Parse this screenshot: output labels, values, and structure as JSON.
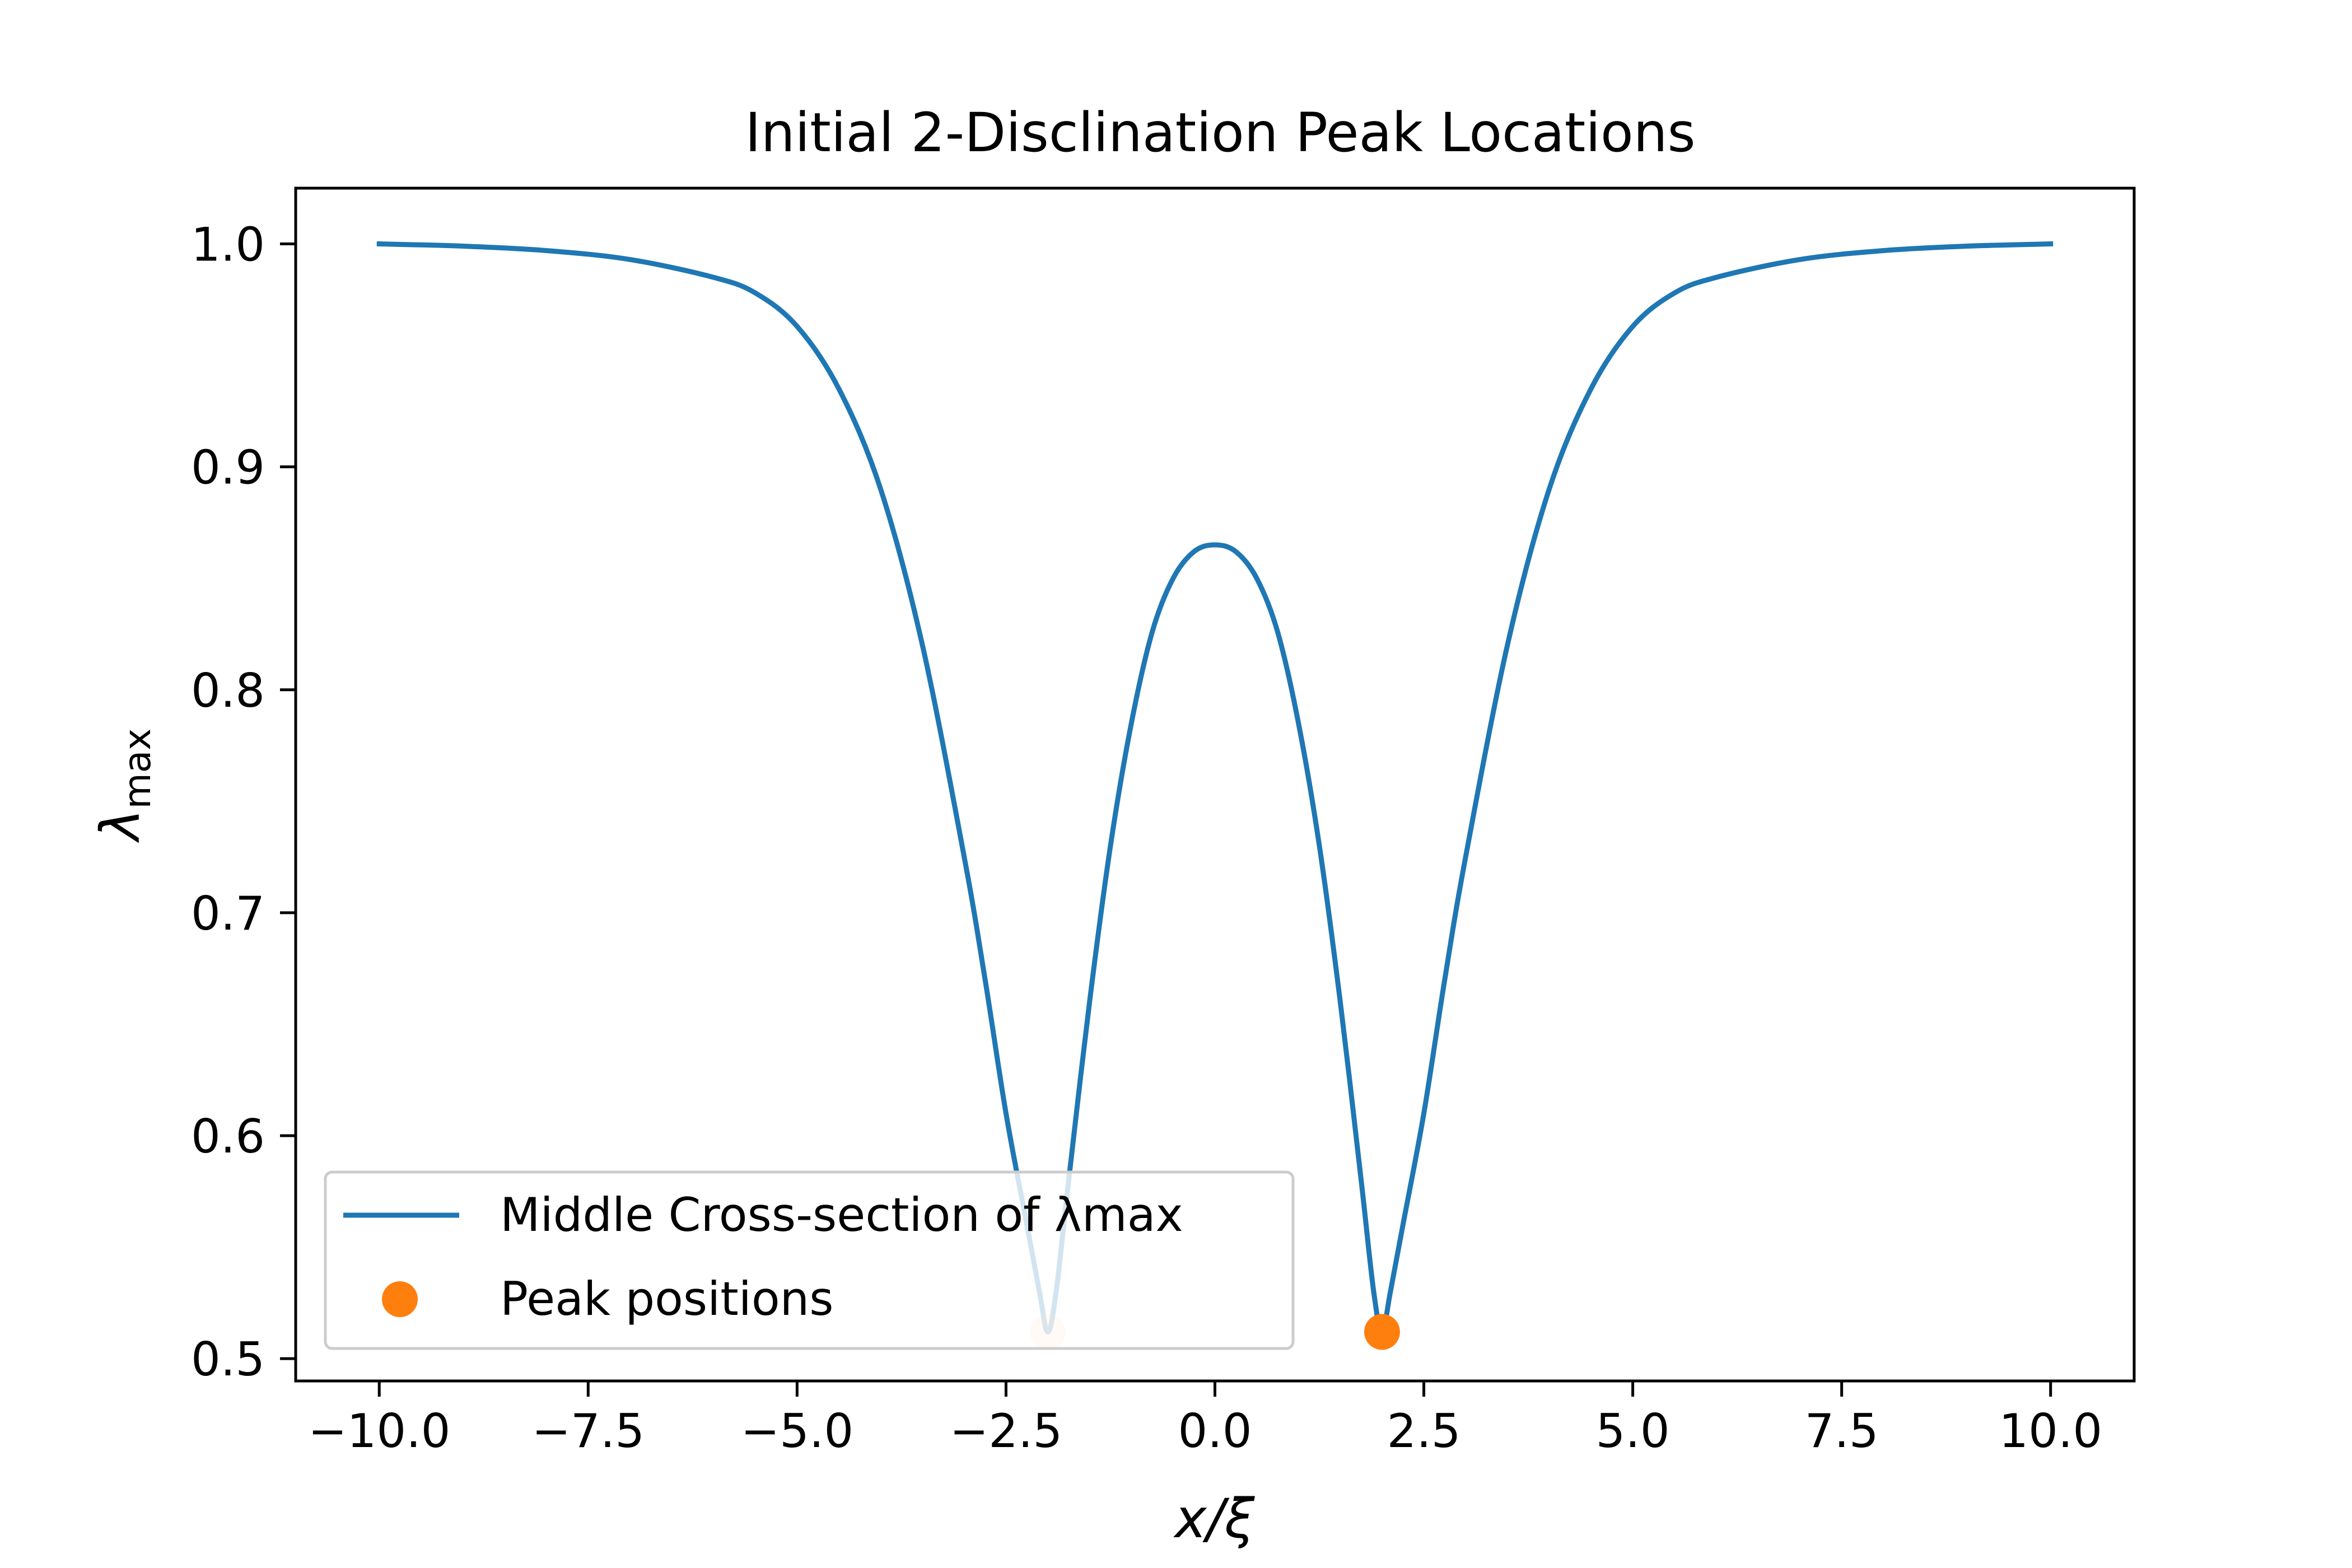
{
  "chart_data": {
    "type": "line",
    "title": "Initial 2-Disclination Peak Locations",
    "xlabel": "x/ξ",
    "ylabel": {
      "symbol": "λ",
      "subscript": "max"
    },
    "xlim": [
      -11.0,
      11.0
    ],
    "ylim": [
      0.49,
      1.025
    ],
    "xticks": [
      -10.0,
      -7.5,
      -5.0,
      -2.5,
      0.0,
      2.5,
      5.0,
      7.5,
      10.0
    ],
    "xtick_labels": [
      "−10.0",
      "−7.5",
      "−5.0",
      "−2.5",
      "0.0",
      "2.5",
      "5.0",
      "7.5",
      "10.0"
    ],
    "yticks": [
      0.5,
      0.6,
      0.7,
      0.8,
      0.9,
      1.0
    ],
    "ytick_labels": [
      "0.5",
      "0.6",
      "0.7",
      "0.8",
      "0.9",
      "1.0"
    ],
    "grid": false,
    "legend_position": "lower-left",
    "series": [
      {
        "name": "Middle Cross-section of λmax",
        "color": "#1f77b4",
        "x": [
          -10,
          -9,
          -8,
          -7,
          -6,
          -5.5,
          -5,
          -4.5,
          -4,
          -3.5,
          -3,
          -2.75,
          -2.5,
          -2.25,
          -2.1,
          -2.0,
          -1.9,
          -1.75,
          -1.5,
          -1.25,
          -1,
          -0.75,
          -0.5,
          -0.25,
          0,
          0.25,
          0.5,
          0.75,
          1,
          1.25,
          1.5,
          1.75,
          1.9,
          2.0,
          2.1,
          2.25,
          2.5,
          2.75,
          3,
          3.5,
          4,
          4.5,
          5,
          5.5,
          6,
          7,
          8,
          9,
          10
        ],
        "y": [
          1.0,
          0.999,
          0.997,
          0.993,
          0.985,
          0.978,
          0.963,
          0.935,
          0.89,
          0.82,
          0.725,
          0.67,
          0.61,
          0.56,
          0.53,
          0.512,
          0.53,
          0.58,
          0.66,
          0.73,
          0.785,
          0.826,
          0.85,
          0.862,
          0.865,
          0.862,
          0.85,
          0.826,
          0.785,
          0.73,
          0.66,
          0.58,
          0.53,
          0.512,
          0.53,
          0.56,
          0.61,
          0.67,
          0.725,
          0.82,
          0.89,
          0.935,
          0.963,
          0.978,
          0.985,
          0.993,
          0.997,
          0.999,
          1.0
        ]
      },
      {
        "name": "Peak positions",
        "type": "scatter",
        "color": "#ff7f0e",
        "x": [
          -2.0,
          2.0
        ],
        "y": [
          0.512,
          0.512
        ],
        "alpha": [
          0.2,
          1.0
        ]
      }
    ]
  }
}
